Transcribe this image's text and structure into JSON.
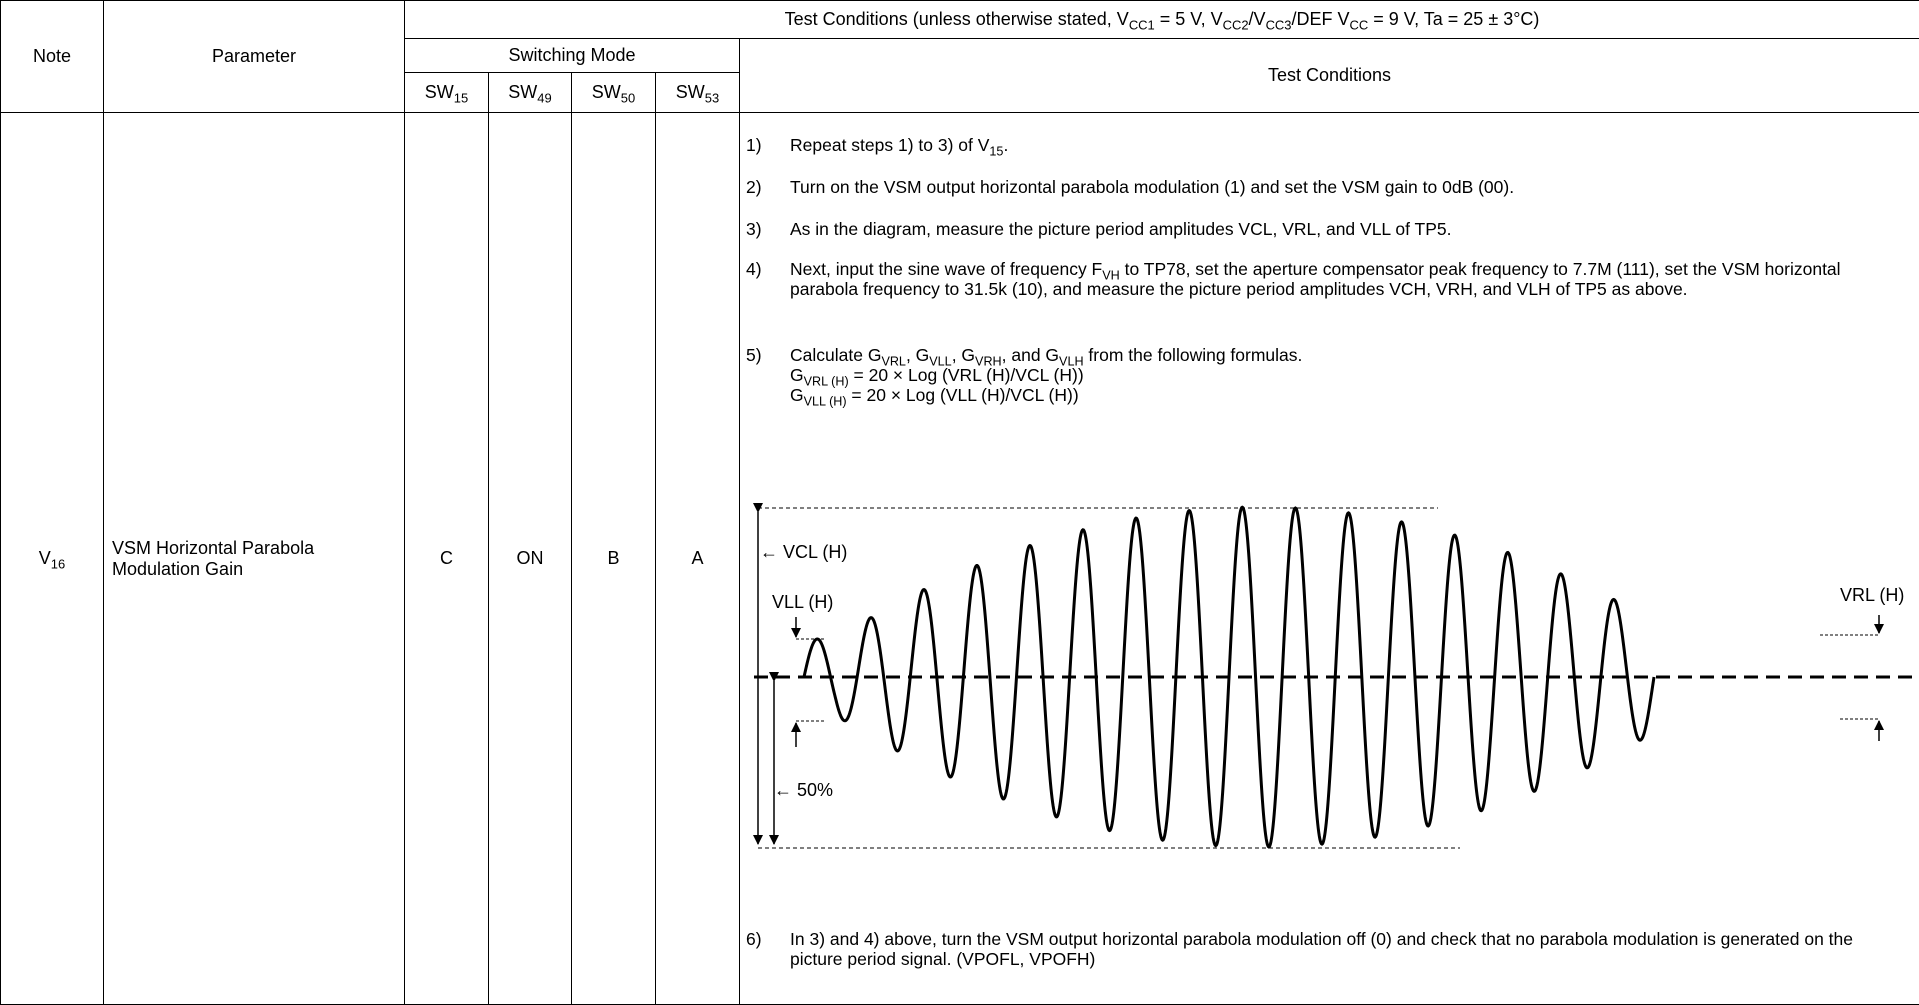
{
  "header": {
    "conditions_title": {
      "prefix": "Test Conditions (unless otherwise stated, V",
      "s1": "CC1",
      "t1": " = 5 V, V",
      "s2": "CC2",
      "t2": "/V",
      "s3": "CC3",
      "t3": "/DEF V",
      "s4": "CC",
      "t4": " = 9 V, Ta = 25 ± 3°C)"
    },
    "note": "Note",
    "parameter": "Parameter",
    "switching_mode": "Switching Mode",
    "test_conditions": "Test Conditions",
    "switches": [
      {
        "base": "SW",
        "sub": "15"
      },
      {
        "base": "SW",
        "sub": "49"
      },
      {
        "base": "SW",
        "sub": "50"
      },
      {
        "base": "SW",
        "sub": "53"
      }
    ]
  },
  "row": {
    "note_base": "V",
    "note_sub": "16",
    "parameter_line1": "VSM Horizontal Parabola",
    "parameter_line2": "Modulation Gain",
    "sw_values": [
      "C",
      "ON",
      "B",
      "A"
    ]
  },
  "steps": {
    "s1": {
      "num": "1)",
      "a": "Repeat steps 1) to 3) of V",
      "sub": "15",
      "b": "."
    },
    "s2": {
      "num": "2)",
      "text": "Turn on the VSM output horizontal parabola modulation (1) and set the VSM gain to 0dB (00)."
    },
    "s3": {
      "num": "3)",
      "text": "As in the diagram, measure the picture period amplitudes VCL, VRL, and VLL of TP5."
    },
    "s4": {
      "num": "4)",
      "a": "Next, input the sine wave of frequency F",
      "sub": "VH",
      "b": " to TP78, set the aperture compensator peak frequency to 7.7M (111), set the VSM horizontal parabola frequency to 31.5k (10), and measure the picture period amplitudes VCH, VRH, and VLH of TP5 as above."
    },
    "s5": {
      "num": "5)",
      "p0": "Calculate G",
      "p1": "VRL",
      "p2": ", G",
      "p3": "VLL",
      "p4": ", G",
      "p5": "VRH",
      "p6": ", and G",
      "p7": "VLH",
      "p8": " from the following formulas.",
      "f1a": "G",
      "f1b": "VRL (H)",
      "f1c": " = 20 × Log (VRL (H)/VCL (H))",
      "f2a": "G",
      "f2b": "VLL (H)",
      "f2c": " = 20 × Log (VLL (H)/VCL (H))"
    },
    "s6": {
      "num": "6)",
      "text": "In 3) and 4) above, turn the VSM output horizontal parabola modulation off (0) and check that no parabola modulation is generated on the picture period signal. (VPOFL, VPOFH)"
    }
  },
  "diagram": {
    "label_vcl": "← VCL (H)",
    "label_vll": "VLL (H)",
    "label_vrl": "VRL (H)",
    "label_50": "← 50%",
    "cycles": 16
  }
}
